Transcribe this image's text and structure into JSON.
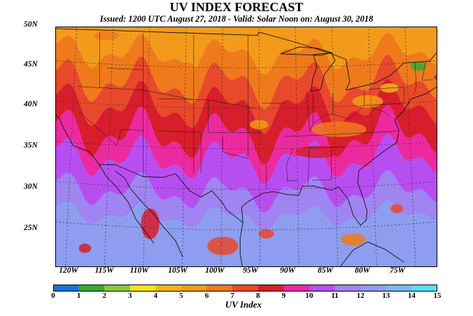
{
  "title": "UV INDEX FORECAST",
  "subtitle": "Issued: 1200 UTC August 27, 2018  -  Valid: Solar Noon on: August 30, 2018",
  "lat_labels": [
    "50N",
    "45N",
    "40N",
    "35N",
    "30N",
    "25N"
  ],
  "lon_labels": [
    "120W",
    "115W",
    "110W",
    "105W",
    "100W",
    "95W",
    "90W",
    "85W",
    "80W",
    "75W"
  ],
  "colorbar": {
    "label": "UV Index",
    "ticks": [
      "0",
      "1",
      "2",
      "3",
      "4",
      "5",
      "6",
      "7",
      "8",
      "9",
      "10",
      "11",
      "12",
      "13",
      "14",
      "15"
    ],
    "colors": [
      "#1a6fdc",
      "#3aa832",
      "#8cc63a",
      "#f2e41e",
      "#f5b31c",
      "#f39a1a",
      "#ef7a1c",
      "#e8492a",
      "#d81e2c",
      "#ec2aa0",
      "#b74ff0",
      "#9f84f2",
      "#8e9df0",
      "#78b9f2",
      "#56dff6"
    ]
  },
  "map": {
    "extent": {
      "lon_min": -123,
      "lon_max": -70.5,
      "lat_min": 20.5,
      "lat_max": 50
    },
    "background": "#9f84f2",
    "band_colors": [
      "#8e9df0",
      "#9f84f2",
      "#b74ff0",
      "#ec2aa0",
      "#d81e2c",
      "#e8492a",
      "#ef7a1c",
      "#f39a1a"
    ]
  }
}
